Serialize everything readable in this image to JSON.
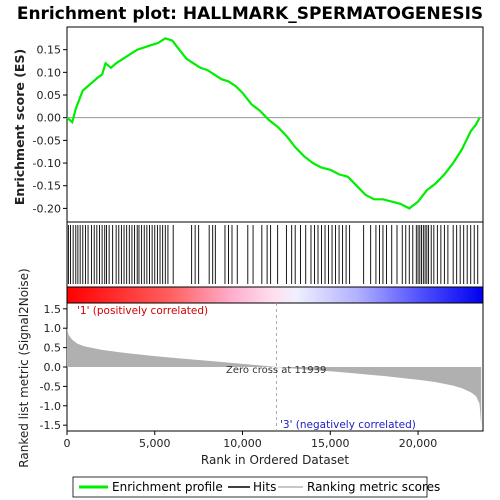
{
  "title": "Enrichment plot: HALLMARK_SPERMATOGENESIS",
  "legend": [
    "Enrichment profile",
    "Hits",
    "Ranking metric scores"
  ],
  "zero_cross_note": "Zero cross at 11939",
  "pos_note": "'1' (positively correlated)",
  "neg_note": "'3' (negatively correlated)",
  "colors": {
    "profile": "#00ee00",
    "hits": "#000000",
    "metric": "#b0b0b0",
    "pos": "#ff0000",
    "neg": "#0000ff"
  },
  "chart_data": [
    {
      "type": "line",
      "ylabel": "Enrichment score (ES)",
      "ylim": [
        -0.23,
        0.2
      ],
      "xlim": [
        0,
        23700
      ],
      "yticks": [
        "0.15",
        "0.10",
        "0.05",
        "0.00",
        "-0.05",
        "-0.10",
        "-0.15",
        "-0.20"
      ],
      "series": [
        {
          "name": "Enrichment profile",
          "x": [
            0,
            300,
            500,
            700,
            900,
            1200,
            1500,
            1800,
            2000,
            2200,
            2500,
            2800,
            3200,
            3600,
            4000,
            4400,
            4800,
            5200,
            5600,
            6000,
            6400,
            6800,
            7200,
            7600,
            8000,
            8400,
            8800,
            9200,
            9600,
            10000,
            10500,
            11000,
            11500,
            12000,
            12500,
            13000,
            13500,
            14000,
            14500,
            15000,
            15500,
            16000,
            16500,
            17000,
            17500,
            18000,
            18500,
            19000,
            19500,
            20000,
            20500,
            21000,
            21500,
            22000,
            22500,
            23000,
            23300,
            23500
          ],
          "y": [
            0.0,
            -0.01,
            0.02,
            0.04,
            0.06,
            0.07,
            0.08,
            0.09,
            0.095,
            0.12,
            0.11,
            0.12,
            0.13,
            0.14,
            0.15,
            0.155,
            0.16,
            0.165,
            0.175,
            0.17,
            0.15,
            0.13,
            0.12,
            0.11,
            0.105,
            0.095,
            0.085,
            0.08,
            0.07,
            0.055,
            0.03,
            0.015,
            -0.005,
            -0.02,
            -0.04,
            -0.065,
            -0.085,
            -0.1,
            -0.11,
            -0.115,
            -0.125,
            -0.13,
            -0.15,
            -0.17,
            -0.18,
            -0.18,
            -0.185,
            -0.19,
            -0.2,
            -0.185,
            -0.16,
            -0.145,
            -0.125,
            -0.1,
            -0.07,
            -0.03,
            -0.015,
            0.0
          ]
        }
      ]
    },
    {
      "type": "scatter",
      "name": "Hits",
      "x": [
        80,
        200,
        350,
        500,
        620,
        750,
        900,
        1050,
        1200,
        1400,
        1550,
        1700,
        1850,
        2000,
        2150,
        2250,
        2400,
        2600,
        2800,
        2950,
        3100,
        3250,
        3400,
        3550,
        3700,
        3850,
        4000,
        4100,
        4250,
        4400,
        4550,
        4700,
        4850,
        5000,
        5150,
        5300,
        5450,
        5600,
        5750,
        6050,
        7100,
        7300,
        7500,
        8100,
        8300,
        8450,
        9000,
        9200,
        9400,
        9700,
        10300,
        10600,
        11100,
        11400,
        11600,
        12000,
        12500,
        12800,
        13000,
        13300,
        13600,
        13900,
        14100,
        14300,
        14500,
        14700,
        14900,
        15100,
        15300,
        15500,
        15700,
        15900,
        16100,
        16900,
        17300,
        17600,
        17800,
        18000,
        18200,
        18500,
        18800,
        19100,
        19300,
        19500,
        19700,
        19900,
        20000,
        20100,
        20200,
        20300,
        20400,
        20500,
        20600,
        20750,
        20900,
        21100,
        21300,
        21500,
        21700,
        22000,
        22200,
        22400,
        22600,
        22800,
        23000,
        23200,
        23400
      ]
    },
    {
      "type": "area",
      "name": "Ranking metric scores",
      "ylabel": "Ranked list metric (Signal2Noise)",
      "xlabel": "Rank in Ordered Dataset",
      "ylim": [
        -1.65,
        1.65
      ],
      "xlim": [
        0,
        23700
      ],
      "yticks": [
        "1.5",
        "1.0",
        "0.5",
        "0.0",
        "-0.5",
        "-1.0",
        "-1.5"
      ],
      "xticks": [
        "0",
        "5,000",
        "10,000",
        "15,000",
        "20,000"
      ],
      "x": [
        0,
        100,
        300,
        600,
        1000,
        2000,
        3000,
        4000,
        5000,
        6000,
        7000,
        8000,
        9000,
        10000,
        11000,
        11939,
        13000,
        14000,
        15000,
        16000,
        17000,
        18000,
        19000,
        20000,
        21000,
        22000,
        22500,
        23000,
        23300,
        23500,
        23600
      ],
      "y": [
        1.0,
        0.82,
        0.7,
        0.6,
        0.53,
        0.44,
        0.38,
        0.33,
        0.28,
        0.24,
        0.2,
        0.16,
        0.12,
        0.08,
        0.04,
        0.0,
        -0.04,
        -0.08,
        -0.11,
        -0.15,
        -0.19,
        -0.23,
        -0.28,
        -0.33,
        -0.39,
        -0.48,
        -0.55,
        -0.65,
        -0.75,
        -0.95,
        -1.5
      ]
    }
  ]
}
